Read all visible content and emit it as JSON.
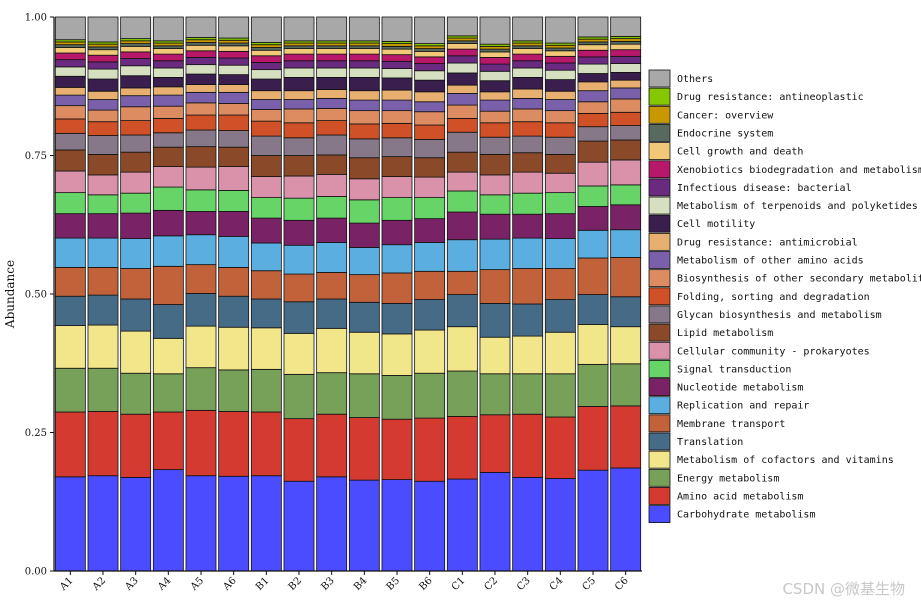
{
  "chart_data": {
    "type": "bar",
    "stacked": true,
    "title": "",
    "xlabel": "",
    "ylabel": "Abundance",
    "ylim": [
      0,
      1
    ],
    "yticks": [
      "0.00",
      "0.25",
      "0.50",
      "0.75",
      "1.00"
    ],
    "categories": [
      "A1",
      "A2",
      "A3",
      "A4",
      "A5",
      "A6",
      "B1",
      "B2",
      "B3",
      "B4",
      "B5",
      "B6",
      "C1",
      "C2",
      "C3",
      "C4",
      "C5",
      "C6"
    ],
    "series": [
      {
        "name": "Carbohydrate metabolism",
        "color": "#4b4bff",
        "values": [
          0.17,
          0.172,
          0.169,
          0.183,
          0.172,
          0.171,
          0.172,
          0.162,
          0.17,
          0.164,
          0.165,
          0.162,
          0.166,
          0.178,
          0.169,
          0.167,
          0.182,
          0.186
        ]
      },
      {
        "name": "Amino acid metabolism",
        "color": "#d43a30",
        "values": [
          0.117,
          0.116,
          0.114,
          0.104,
          0.118,
          0.117,
          0.115,
          0.113,
          0.113,
          0.113,
          0.109,
          0.114,
          0.113,
          0.104,
          0.114,
          0.111,
          0.115,
          0.112
        ]
      },
      {
        "name": "Energy metabolism",
        "color": "#77a058",
        "values": [
          0.079,
          0.078,
          0.074,
          0.069,
          0.077,
          0.075,
          0.077,
          0.08,
          0.075,
          0.079,
          0.079,
          0.081,
          0.082,
          0.074,
          0.073,
          0.078,
          0.076,
          0.076
        ]
      },
      {
        "name": "Metabolism of cofactors and vitamins",
        "color": "#f1e68a",
        "values": [
          0.077,
          0.078,
          0.076,
          0.064,
          0.075,
          0.077,
          0.075,
          0.074,
          0.08,
          0.075,
          0.075,
          0.078,
          0.08,
          0.066,
          0.068,
          0.075,
          0.072,
          0.067
        ]
      },
      {
        "name": "Translation",
        "color": "#456b87",
        "values": [
          0.053,
          0.054,
          0.058,
          0.061,
          0.059,
          0.056,
          0.052,
          0.057,
          0.053,
          0.054,
          0.055,
          0.055,
          0.058,
          0.061,
          0.058,
          0.059,
          0.054,
          0.054
        ]
      },
      {
        "name": "Membrane transport",
        "color": "#c1623b",
        "values": [
          0.052,
          0.05,
          0.055,
          0.069,
          0.052,
          0.052,
          0.051,
          0.05,
          0.048,
          0.05,
          0.055,
          0.051,
          0.042,
          0.061,
          0.064,
          0.056,
          0.066,
          0.071
        ]
      },
      {
        "name": "Replication and repair",
        "color": "#5aafe0",
        "values": [
          0.053,
          0.053,
          0.054,
          0.055,
          0.054,
          0.056,
          0.05,
          0.052,
          0.054,
          0.049,
          0.051,
          0.052,
          0.057,
          0.055,
          0.055,
          0.054,
          0.05,
          0.05
        ]
      },
      {
        "name": "Nucleotide metabolism",
        "color": "#7a2266",
        "values": [
          0.044,
          0.044,
          0.046,
          0.046,
          0.042,
          0.045,
          0.045,
          0.045,
          0.044,
          0.044,
          0.044,
          0.043,
          0.05,
          0.045,
          0.043,
          0.045,
          0.043,
          0.045
        ]
      },
      {
        "name": "Signal transduction",
        "color": "#66d466",
        "values": [
          0.038,
          0.034,
          0.036,
          0.042,
          0.039,
          0.038,
          0.037,
          0.04,
          0.039,
          0.042,
          0.041,
          0.038,
          0.038,
          0.035,
          0.038,
          0.038,
          0.037,
          0.036
        ]
      },
      {
        "name": "Cellular community - prokaryotes",
        "color": "#da92aa",
        "values": [
          0.039,
          0.036,
          0.038,
          0.037,
          0.041,
          0.043,
          0.038,
          0.04,
          0.04,
          0.038,
          0.038,
          0.037,
          0.034,
          0.036,
          0.038,
          0.035,
          0.043,
          0.045
        ]
      },
      {
        "name": "Lipid metabolism",
        "color": "#8a4a2a",
        "values": [
          0.038,
          0.037,
          0.036,
          0.035,
          0.037,
          0.035,
          0.038,
          0.037,
          0.035,
          0.038,
          0.036,
          0.035,
          0.036,
          0.037,
          0.035,
          0.034,
          0.038,
          0.036
        ]
      },
      {
        "name": "Glycan biosynthesis and metabolism",
        "color": "#867888",
        "values": [
          0.03,
          0.034,
          0.031,
          0.026,
          0.03,
          0.03,
          0.035,
          0.032,
          0.036,
          0.034,
          0.034,
          0.033,
          0.036,
          0.031,
          0.03,
          0.031,
          0.026,
          0.026
        ]
      },
      {
        "name": "Folding, sorting and degradation",
        "color": "#d05028",
        "values": [
          0.026,
          0.025,
          0.026,
          0.026,
          0.027,
          0.028,
          0.027,
          0.027,
          0.026,
          0.027,
          0.026,
          0.026,
          0.025,
          0.026,
          0.026,
          0.026,
          0.024,
          0.024
        ]
      },
      {
        "name": "Biosynthesis of other secondary metabolites",
        "color": "#dc8c60",
        "values": [
          0.024,
          0.021,
          0.025,
          0.022,
          0.022,
          0.021,
          0.021,
          0.025,
          0.022,
          0.024,
          0.023,
          0.024,
          0.024,
          0.021,
          0.023,
          0.022,
          0.021,
          0.024
        ]
      },
      {
        "name": "Metabolism of other amino acids",
        "color": "#7a60aa",
        "values": [
          0.019,
          0.019,
          0.02,
          0.02,
          0.019,
          0.02,
          0.018,
          0.017,
          0.018,
          0.019,
          0.019,
          0.018,
          0.021,
          0.02,
          0.019,
          0.02,
          0.02,
          0.02
        ]
      },
      {
        "name": "Drug resistance: antimicrobial",
        "color": "#e8b070",
        "values": [
          0.014,
          0.015,
          0.014,
          0.015,
          0.014,
          0.014,
          0.016,
          0.016,
          0.016,
          0.017,
          0.018,
          0.018,
          0.015,
          0.015,
          0.017,
          0.015,
          0.016,
          0.014
        ]
      },
      {
        "name": "Cell motility",
        "color": "#3a1e4e",
        "values": [
          0.02,
          0.022,
          0.022,
          0.017,
          0.019,
          0.018,
          0.021,
          0.024,
          0.022,
          0.024,
          0.022,
          0.021,
          0.022,
          0.02,
          0.021,
          0.021,
          0.015,
          0.014
        ]
      },
      {
        "name": "Metabolism of terpenoids and polyketides",
        "color": "#d6e0c0",
        "values": [
          0.017,
          0.018,
          0.018,
          0.017,
          0.017,
          0.017,
          0.017,
          0.017,
          0.017,
          0.017,
          0.017,
          0.017,
          0.018,
          0.017,
          0.017,
          0.017,
          0.017,
          0.016
        ]
      },
      {
        "name": "Infectious disease: bacterial",
        "color": "#6a2a80",
        "values": [
          0.013,
          0.013,
          0.013,
          0.013,
          0.013,
          0.013,
          0.013,
          0.013,
          0.013,
          0.013,
          0.013,
          0.013,
          0.013,
          0.013,
          0.013,
          0.013,
          0.013,
          0.013
        ]
      },
      {
        "name": "Xenobiotics biodegradation and metabolism",
        "color": "#b8186a",
        "values": [
          0.012,
          0.012,
          0.012,
          0.012,
          0.012,
          0.012,
          0.012,
          0.012,
          0.012,
          0.012,
          0.012,
          0.012,
          0.012,
          0.012,
          0.012,
          0.012,
          0.012,
          0.012
        ]
      },
      {
        "name": "Cell growth and death",
        "color": "#f0c878",
        "values": [
          0.01,
          0.01,
          0.01,
          0.01,
          0.01,
          0.01,
          0.01,
          0.01,
          0.01,
          0.01,
          0.01,
          0.01,
          0.01,
          0.01,
          0.01,
          0.01,
          0.01,
          0.01
        ]
      },
      {
        "name": "Endocrine system",
        "color": "#586a60",
        "values": [
          0.005,
          0.005,
          0.005,
          0.005,
          0.005,
          0.005,
          0.005,
          0.005,
          0.005,
          0.005,
          0.005,
          0.005,
          0.005,
          0.005,
          0.005,
          0.005,
          0.005,
          0.005
        ]
      },
      {
        "name": "Cancer: overview",
        "color": "#c89800",
        "values": [
          0.005,
          0.005,
          0.005,
          0.005,
          0.005,
          0.005,
          0.005,
          0.005,
          0.005,
          0.005,
          0.005,
          0.005,
          0.005,
          0.005,
          0.005,
          0.005,
          0.005,
          0.005
        ]
      },
      {
        "name": "Drug resistance: antineoplastic",
        "color": "#86c800",
        "values": [
          0.004,
          0.004,
          0.004,
          0.004,
          0.004,
          0.004,
          0.004,
          0.004,
          0.004,
          0.004,
          0.004,
          0.004,
          0.004,
          0.004,
          0.004,
          0.004,
          0.004,
          0.004
        ]
      },
      {
        "name": "Others",
        "color": "#a8a8a8",
        "values": [
          0.042,
          0.045,
          0.042,
          0.041,
          0.039,
          0.042,
          0.05,
          0.043,
          0.042,
          0.044,
          0.042,
          0.045,
          0.039,
          0.041,
          0.042,
          0.044,
          0.04,
          0.04
        ]
      }
    ],
    "legend_position": "right"
  },
  "watermark": "CSDN @微基生物"
}
